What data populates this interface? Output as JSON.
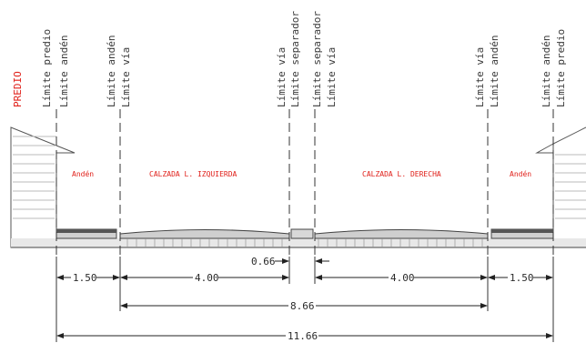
{
  "predio_label": "PREDIO",
  "vertical_labels": {
    "left_limite_predio": "Límite predio",
    "left_limite_anden": "Límite andén",
    "left_inner_limite_anden": "Límite andén",
    "left_inner_limite_via": "Límite vía",
    "center_left_limite_via": "Límite vía",
    "center_left_limite_separador": "Límite separador",
    "center_right_limite_separador": "Límite separador",
    "center_right_limite_via": "Límite vía",
    "right_inner_limite_via": "Límite vía",
    "right_inner_limite_anden": "Límite andén",
    "right_limite_anden": "Límite andén",
    "right_limite_predio": "Límite predio"
  },
  "zones": {
    "anden_left": "Andén",
    "calzada_izquierda": "CALZADA  L.  IZQUIERDA",
    "calzada_derecha": "CALZADA  L.  DERECHA",
    "anden_right": "Andén"
  },
  "dimensions": {
    "anden_left": "1.50",
    "calzada_left": "4.00",
    "separador": "0.66",
    "calzada_right": "4.00",
    "anden_right": "1.50",
    "between_vias": "8.66",
    "total": "11.66"
  },
  "colors": {
    "annotation_red": "#e0201a",
    "line": "#3a3a3a"
  }
}
